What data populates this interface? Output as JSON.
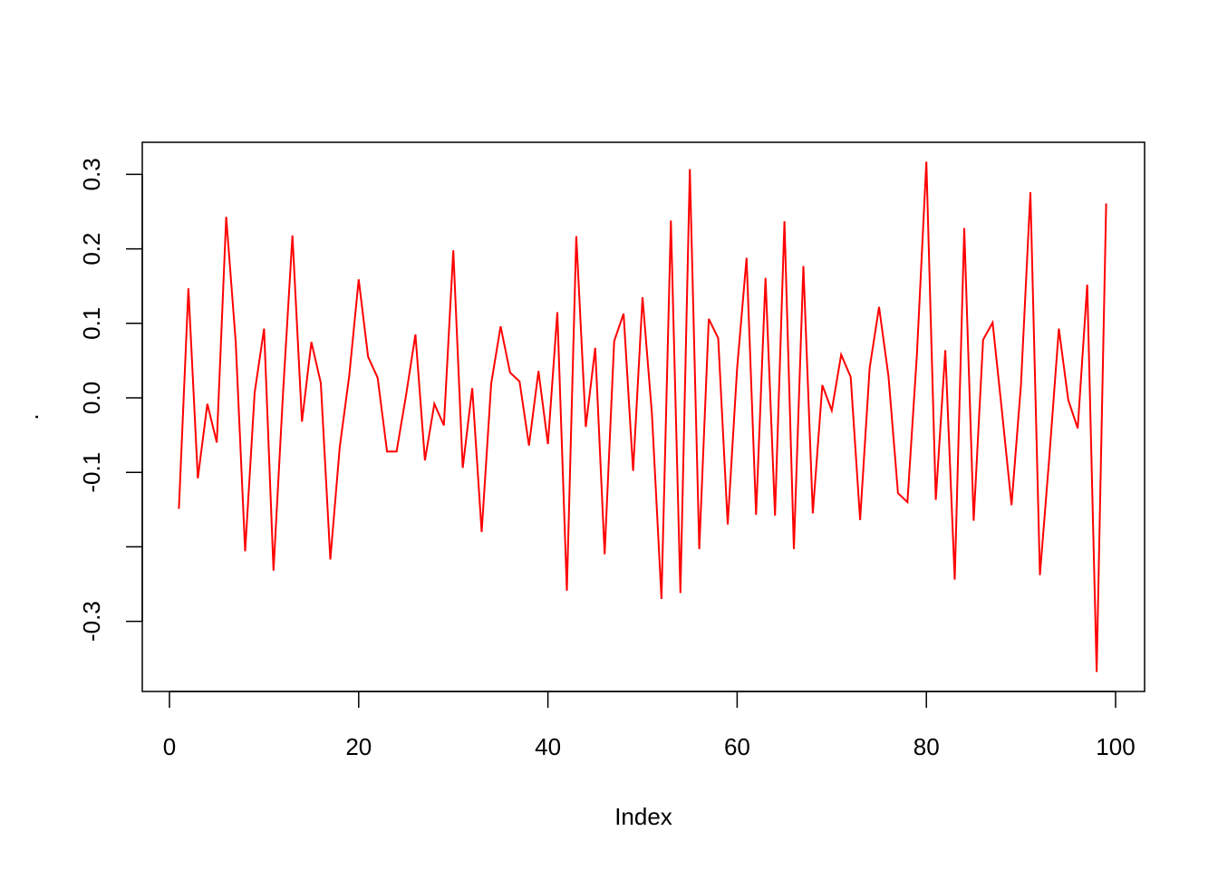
{
  "chart_data": {
    "type": "line",
    "xlabel": "Index",
    "ylabel": ".",
    "xlim": [
      0,
      100
    ],
    "ylim": [
      -0.37,
      0.32
    ],
    "x_ticks": [
      0,
      20,
      40,
      60,
      80,
      100
    ],
    "x_tick_labels": [
      "0",
      "20",
      "40",
      "60",
      "80",
      "100"
    ],
    "y_ticks": [
      -0.3,
      -0.2,
      -0.1,
      0.0,
      0.1,
      0.2,
      0.3
    ],
    "y_tick_labels": [
      "-0.3",
      "",
      "-0.1",
      "0.0",
      "0.1",
      "0.2",
      "0.3"
    ],
    "grid": false,
    "series": [
      {
        "color": "#ff0000",
        "x": [
          1,
          2,
          3,
          4,
          5,
          6,
          7,
          8,
          9,
          10,
          11,
          12,
          13,
          14,
          15,
          16,
          17,
          18,
          19,
          20,
          21,
          22,
          23,
          24,
          25,
          26,
          27,
          28,
          29,
          30,
          31,
          32,
          33,
          34,
          35,
          36,
          37,
          38,
          39,
          40,
          41,
          42,
          43,
          44,
          45,
          46,
          47,
          48,
          49,
          50,
          51,
          52,
          53,
          54,
          55,
          56,
          57,
          58,
          59,
          60,
          61,
          62,
          63,
          64,
          65,
          66,
          67,
          68,
          69,
          70,
          71,
          72,
          73,
          74,
          75,
          76,
          77,
          78,
          79,
          80,
          81,
          82,
          83,
          84,
          85,
          86,
          87,
          88,
          89,
          90,
          91,
          92,
          93,
          94,
          95,
          96,
          97,
          98,
          99
        ],
        "values": [
          -0.149,
          0.147,
          -0.108,
          -0.008,
          -0.06,
          0.243,
          0.075,
          -0.206,
          0.007,
          0.093,
          -0.232,
          0.006,
          0.218,
          -0.032,
          0.075,
          0.02,
          -0.217,
          -0.066,
          0.03,
          0.159,
          0.055,
          0.027,
          -0.072,
          -0.072,
          0.003,
          0.085,
          -0.084,
          -0.008,
          -0.037,
          0.198,
          -0.094,
          0.013,
          -0.18,
          0.019,
          0.096,
          0.034,
          0.022,
          -0.064,
          0.036,
          -0.062,
          0.115,
          -0.259,
          0.217,
          -0.039,
          0.067,
          -0.21,
          0.076,
          0.113,
          -0.098,
          0.135,
          -0.022,
          -0.27,
          0.238,
          -0.262,
          0.307,
          -0.203,
          0.106,
          0.08,
          -0.17,
          0.04,
          0.188,
          -0.157,
          0.161,
          -0.158,
          0.237,
          -0.203,
          0.177,
          -0.155,
          0.017,
          -0.017,
          0.058,
          0.028,
          -0.164,
          0.04,
          0.122,
          0.029,
          -0.128,
          -0.14,
          0.059,
          0.317,
          -0.137,
          0.064,
          -0.244,
          0.228,
          -0.165,
          0.078,
          0.101,
          -0.019,
          -0.144,
          0.018,
          0.276,
          -0.238,
          -0.079,
          0.093,
          -0.003,
          -0.041,
          0.152,
          -0.368,
          0.261
        ]
      }
    ]
  }
}
